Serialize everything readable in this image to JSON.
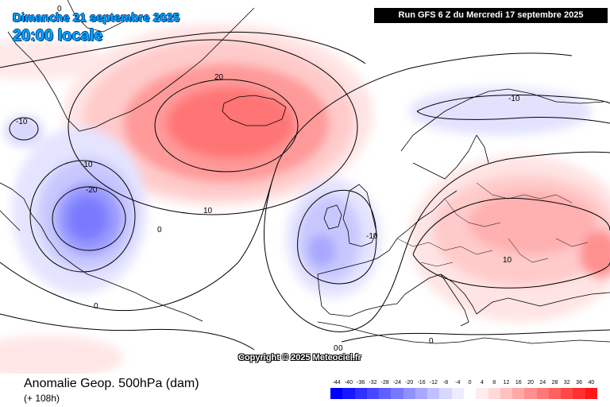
{
  "header": {
    "date_line": "Dimanche 21 septembre 2025",
    "time_line": "20:00 locale",
    "run_banner": "Run GFS 6 Z du Mercredi 17 septembre 2025"
  },
  "copyright": "Copyright © 2025 Meteociel.fr",
  "legend": {
    "title": "Anomalie Geop. 500hPa (dam)",
    "subtitle": "(+ 108h)",
    "scale": [
      {
        "label": "-44",
        "color": "#0000ff"
      },
      {
        "label": "-40",
        "color": "#1818ff"
      },
      {
        "label": "-36",
        "color": "#3030ff"
      },
      {
        "label": "-32",
        "color": "#4848ff"
      },
      {
        "label": "-28",
        "color": "#6060ff"
      },
      {
        "label": "-24",
        "color": "#7878ff"
      },
      {
        "label": "-20",
        "color": "#9090ff"
      },
      {
        "label": "-16",
        "color": "#a8a8ff"
      },
      {
        "label": "-12",
        "color": "#c0c0ff"
      },
      {
        "label": "-8",
        "color": "#d8d8ff"
      },
      {
        "label": "-4",
        "color": "#ececff"
      },
      {
        "label": "0",
        "color": "#ffffff"
      },
      {
        "label": "4",
        "color": "#ffecec"
      },
      {
        "label": "8",
        "color": "#ffd8d8"
      },
      {
        "label": "12",
        "color": "#ffc0c0"
      },
      {
        "label": "16",
        "color": "#ffa8a8"
      },
      {
        "label": "20",
        "color": "#ff9090"
      },
      {
        "label": "24",
        "color": "#ff7878"
      },
      {
        "label": "28",
        "color": "#ff6060"
      },
      {
        "label": "32",
        "color": "#ff4848"
      },
      {
        "label": "36",
        "color": "#ff3030"
      },
      {
        "label": "40",
        "color": "#ff1818"
      }
    ]
  },
  "contour_labels": [
    "0",
    "-10",
    "-10",
    "-20",
    "20",
    "10",
    "0",
    "0",
    "-10",
    "-10",
    "10",
    "0",
    "0",
    "0"
  ]
}
